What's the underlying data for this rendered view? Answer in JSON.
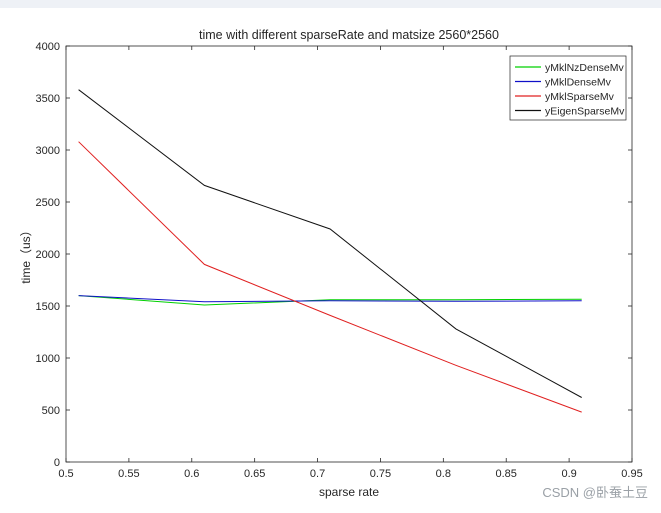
{
  "chart_data": {
    "type": "line",
    "title": "time with different sparseRate and matsize 2560*2560",
    "xlabel": "sparse rate",
    "ylabel": "time（us）",
    "xlim": [
      0.5,
      0.95
    ],
    "ylim": [
      0,
      4000
    ],
    "xticks": [
      "0.5",
      "0.55",
      "0.6",
      "0.65",
      "0.7",
      "0.75",
      "0.8",
      "0.85",
      "0.9",
      "0.95"
    ],
    "yticks": [
      "0",
      "500",
      "1000",
      "1500",
      "2000",
      "2500",
      "3000",
      "3500",
      "4000"
    ],
    "grid": false,
    "legend_position": "top-right",
    "x": [
      0.51,
      0.61,
      0.71,
      0.81,
      0.91
    ],
    "series": [
      {
        "name": "yMklNzDenseMv",
        "color": "#00d000",
        "values": [
          1600,
          1510,
          1560,
          1560,
          1565
        ]
      },
      {
        "name": "yMklDenseMv",
        "color": "#1010c8",
        "values": [
          1600,
          1540,
          1550,
          1545,
          1550
        ]
      },
      {
        "name": "yMklSparseMv",
        "color": "#e02020",
        "values": [
          3080,
          1900,
          1410,
          930,
          480
        ]
      },
      {
        "name": "yEigenSparseMv",
        "color": "#111111",
        "values": [
          3580,
          2660,
          2240,
          1280,
          620
        ]
      }
    ]
  },
  "watermark": "CSDN @卧蚕土豆"
}
